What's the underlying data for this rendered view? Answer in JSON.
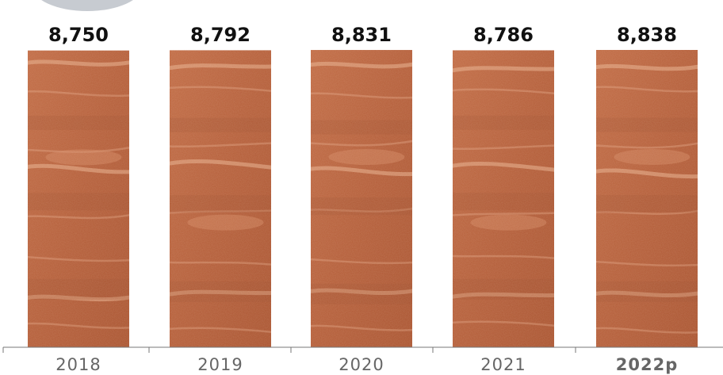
{
  "colors": {
    "bar_base": "#b8613b",
    "bar_dark": "#9c4d2c",
    "bar_light": "#d48a63",
    "marbling": "#e8b08e",
    "blob": "#c7cbd1",
    "axis": "#777777",
    "value_label": "#111111",
    "category_label": "#666666"
  },
  "chart_data": {
    "type": "bar",
    "categories": [
      "2018",
      "2019",
      "2020",
      "2021",
      "2022p"
    ],
    "values": [
      8750,
      8792,
      8831,
      8786,
      8838
    ],
    "value_labels": [
      "8,750",
      "8,792",
      "8,831",
      "8,786",
      "8,838"
    ],
    "title": "",
    "xlabel": "",
    "ylabel": "",
    "grid": false,
    "legend": "none",
    "bar_fill": "raw-meat texture"
  }
}
